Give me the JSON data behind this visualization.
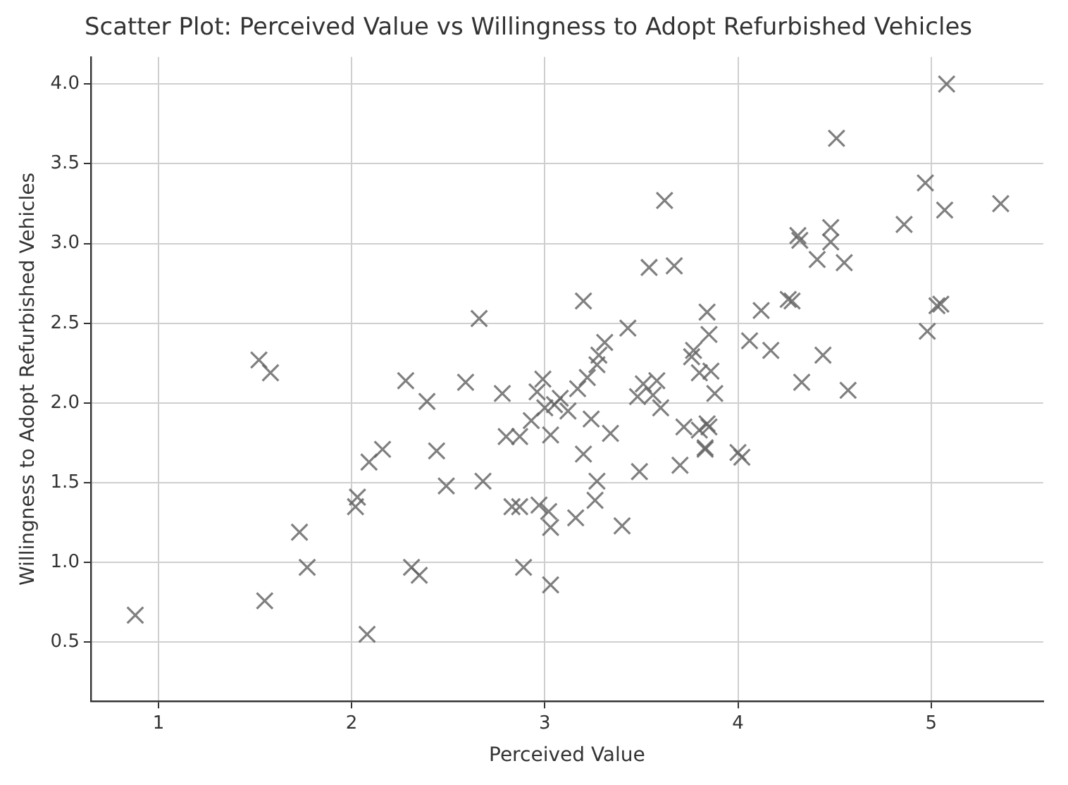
{
  "chart_data": {
    "type": "scatter",
    "title": "Scatter Plot: Perceived Value vs Willingness to Adopt Refurbished Vehicles",
    "xlabel": "Perceived Value",
    "ylabel": "Willingness to Adopt Refurbished Vehicles",
    "marker": "cross",
    "grid": true,
    "legend": false,
    "xlim": [
      0.65,
      5.58
    ],
    "xticks": [
      1,
      2,
      3,
      4,
      5
    ],
    "ylim": [
      0.13,
      4.17
    ],
    "yticks": [
      {
        "value": 0.5,
        "label": "0.5"
      },
      {
        "value": 1,
        "label": "1.0"
      },
      {
        "value": 1.5,
        "label": "1.5"
      },
      {
        "value": 2,
        "label": "2.0"
      },
      {
        "value": 2.5,
        "label": "2.5"
      },
      {
        "value": 3,
        "label": "3.0"
      },
      {
        "value": 3.5,
        "label": "3.5"
      },
      {
        "value": 4,
        "label": "4.0"
      }
    ],
    "series": [
      {
        "color": "#606060",
        "x": [
          0.88,
          1.52,
          1.58,
          1.55,
          1.73,
          1.77,
          2.02,
          2.03,
          2.08,
          2.09,
          2.16,
          2.28,
          2.31,
          2.35,
          2.39,
          2.44,
          2.49,
          2.59,
          2.66,
          2.68,
          2.78,
          2.8,
          2.83,
          2.87,
          2.89,
          2.87,
          2.93,
          2.96,
          2.97,
          2.99,
          3.0,
          3.02,
          3.03,
          3.03,
          3.03,
          3.05,
          3.08,
          3.12,
          3.16,
          3.17,
          3.2,
          3.2,
          3.22,
          3.24,
          3.26,
          3.27,
          3.27,
          3.28,
          3.31,
          3.34,
          3.4,
          3.43,
          3.49,
          3.48,
          3.51,
          3.54,
          3.56,
          3.58,
          3.6,
          3.62,
          3.67,
          3.7,
          3.72,
          3.76,
          3.77,
          3.8,
          3.8,
          3.83,
          3.85,
          3.84,
          3.84,
          3.85,
          3.83,
          3.86,
          3.88,
          4.0,
          4.02,
          4.06,
          4.12,
          4.17,
          4.26,
          4.28,
          4.31,
          4.32,
          4.33,
          4.41,
          4.44,
          4.48,
          4.48,
          4.51,
          4.55,
          4.57,
          4.86,
          4.97,
          4.98,
          5.03,
          5.05,
          5.07,
          5.08,
          5.36
        ],
        "values": [
          0.67,
          2.27,
          2.19,
          0.76,
          1.19,
          0.97,
          1.35,
          1.41,
          0.55,
          1.63,
          1.71,
          2.14,
          0.97,
          0.92,
          2.01,
          1.7,
          1.48,
          2.13,
          2.53,
          1.51,
          2.06,
          1.79,
          1.35,
          1.79,
          0.97,
          1.35,
          1.89,
          2.07,
          1.36,
          2.15,
          1.97,
          1.32,
          1.8,
          1.22,
          0.86,
          1.99,
          2.03,
          1.95,
          1.28,
          2.09,
          2.64,
          1.68,
          2.16,
          1.9,
          1.39,
          1.51,
          2.24,
          2.3,
          2.38,
          1.81,
          1.23,
          2.47,
          1.57,
          2.04,
          2.12,
          2.85,
          2.05,
          2.14,
          1.97,
          3.27,
          2.86,
          1.61,
          1.85,
          2.29,
          2.33,
          2.19,
          1.83,
          1.72,
          1.85,
          1.87,
          2.57,
          2.43,
          1.71,
          2.2,
          2.06,
          1.69,
          1.66,
          2.39,
          2.58,
          2.33,
          2.65,
          2.64,
          3.05,
          3.02,
          2.13,
          2.9,
          2.3,
          3.1,
          3.01,
          3.66,
          2.88,
          2.08,
          3.12,
          3.38,
          2.45,
          2.61,
          2.62,
          3.21,
          4.0,
          3.25
        ]
      }
    ]
  }
}
